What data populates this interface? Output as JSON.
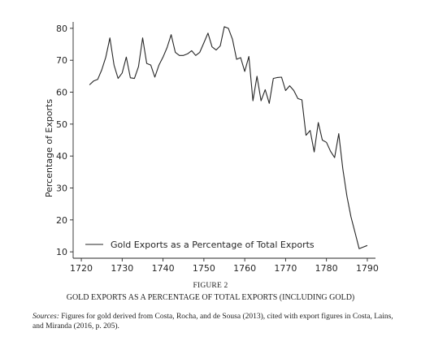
{
  "chart_data": {
    "type": "line",
    "title": "",
    "xlabel": "",
    "ylabel": "Percentage of Exports",
    "xlim": [
      1718,
      1792
    ],
    "ylim": [
      8,
      82
    ],
    "xticks": [
      1720,
      1730,
      1740,
      1750,
      1760,
      1770,
      1780,
      1790
    ],
    "yticks": [
      10,
      20,
      30,
      40,
      50,
      60,
      70,
      80
    ],
    "grid": false,
    "legend_position": "bottom-center",
    "series": [
      {
        "name": "Gold Exports as a Percentage of Total Exports",
        "color": "#262626",
        "x": [
          1722,
          1723,
          1724,
          1725,
          1726,
          1727,
          1728,
          1729,
          1730,
          1731,
          1732,
          1733,
          1734,
          1735,
          1736,
          1737,
          1738,
          1739,
          1740,
          1741,
          1742,
          1743,
          1744,
          1745,
          1746,
          1747,
          1748,
          1749,
          1750,
          1751,
          1752,
          1753,
          1754,
          1755,
          1756,
          1757,
          1758,
          1759,
          1760,
          1761,
          1762,
          1763,
          1764,
          1765,
          1766,
          1767,
          1768,
          1769,
          1770,
          1771,
          1772,
          1773,
          1774,
          1775,
          1776,
          1777,
          1778,
          1779,
          1780,
          1781,
          1782,
          1783,
          1784,
          1785,
          1786,
          1787,
          1788,
          1789,
          1790
        ],
        "values": [
          62.3,
          63.5,
          64,
          67,
          71,
          77,
          68.5,
          64.3,
          66,
          71,
          64.5,
          64.3,
          68,
          77,
          69,
          68.5,
          64.7,
          68.5,
          71,
          74,
          78,
          72.5,
          71.5,
          71.5,
          72,
          73,
          71.5,
          72.5,
          75.5,
          78.5,
          74.2,
          73.2,
          74.5,
          80.5,
          80,
          76.5,
          70.3,
          70.8,
          66.5,
          71.2,
          57.3,
          65,
          57.3,
          60.8,
          56.5,
          64.3,
          64.6,
          64.7,
          60.5,
          62,
          60.5,
          58,
          57.6,
          46.5,
          48,
          41.3,
          50.5,
          45,
          44.3,
          41.5,
          39.5,
          47,
          36,
          27.5,
          21,
          16,
          11,
          11.5,
          12
        ]
      }
    ]
  },
  "figure": {
    "number": "FIGURE 2",
    "title": "GOLD EXPORTS AS A PERCENTAGE OF TOTAL EXPORTS (INCLUDING GOLD)",
    "sources_label": "Sources:",
    "sources_text": " Figures for gold derived from Costa, Rocha, and de Sousa (2013), cited with export figures in Costa, Lains, and Miranda (2016, p. 205)."
  }
}
